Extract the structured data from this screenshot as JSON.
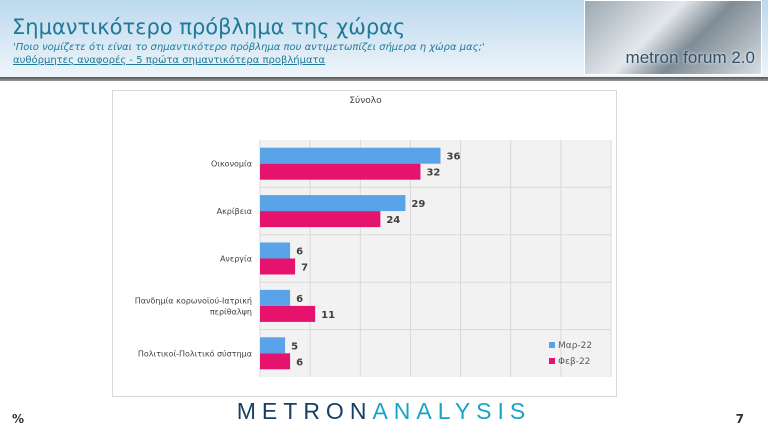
{
  "header": {
    "title": "Σημαντικότερο πρόβλημα της χώρας",
    "question": "'Ποιο νομίζετε ότι  είναι το σημαντικότερο πρόβλημα που αντιμετωπίζει σήμερα η χώρα μας;'",
    "note": "αυθόρμητες αναφορές - 5 πρώτα σημαντικότερα προβλήματα",
    "logo_text": "metron forum 2.0"
  },
  "footer": {
    "brand_part1": "METRON",
    "brand_part2": "ANALYSIS",
    "unit": "%",
    "page": "7"
  },
  "chart_data": {
    "type": "bar",
    "orientation": "horizontal",
    "title": "Σύνολο",
    "categories": [
      "Οικονομία",
      "Ακρίβεια",
      "Ανεργία",
      "Πανδημία κορωνοϊού-Ιατρική περίθαλψη",
      "Πολιτικοί-Πολιτικό σύστημα"
    ],
    "series": [
      {
        "name": "Μαρ-22",
        "values": [
          36,
          29,
          6,
          6,
          5
        ],
        "color": "#5ba3e8"
      },
      {
        "name": "Φεβ-22",
        "values": [
          32,
          24,
          7,
          11,
          6
        ],
        "color": "#e5126e"
      }
    ],
    "xlim": [
      0,
      70
    ],
    "grid": true,
    "legend": "bottom-right"
  }
}
